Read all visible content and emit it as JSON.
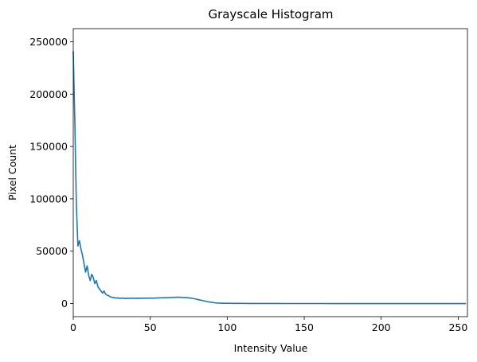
{
  "chart_data": {
    "type": "line",
    "title": "Grayscale Histogram",
    "xlabel": "Intensity Value",
    "ylabel": "Pixel Count",
    "xlim": [
      0,
      256
    ],
    "ylim": [
      -12500,
      262500
    ],
    "xticks": [
      0,
      50,
      100,
      150,
      200,
      250
    ],
    "yticks": [
      0,
      50000,
      100000,
      150000,
      200000,
      250000
    ],
    "grid": false,
    "series": [
      {
        "color": "#1f77b4",
        "x": [
          0,
          1,
          2,
          3,
          4,
          5,
          6,
          7,
          8,
          9,
          10,
          11,
          12,
          13,
          14,
          15,
          16,
          17,
          18,
          19,
          20,
          21,
          22,
          23,
          24,
          25,
          26,
          27,
          28,
          29,
          30,
          32,
          34,
          36,
          38,
          40,
          42,
          44,
          46,
          48,
          50,
          52,
          54,
          56,
          58,
          60,
          62,
          64,
          66,
          68,
          70,
          72,
          74,
          76,
          78,
          80,
          82,
          84,
          86,
          88,
          90,
          92,
          94,
          96,
          98,
          100,
          105,
          110,
          115,
          120,
          125,
          130,
          140,
          150,
          160,
          170,
          180,
          190,
          200,
          210,
          220,
          230,
          240,
          250,
          255
        ],
        "y": [
          241000,
          175000,
          95000,
          55000,
          60000,
          52000,
          46000,
          38000,
          30000,
          36000,
          27000,
          22000,
          28000,
          25000,
          19000,
          22000,
          16000,
          14000,
          12000,
          10000,
          12000,
          9000,
          8000,
          7500,
          6500,
          6000,
          5800,
          5500,
          5200,
          5500,
          5000,
          5200,
          4800,
          5000,
          5200,
          4900,
          5100,
          5000,
          5200,
          5100,
          5300,
          5100,
          5300,
          5400,
          5500,
          5600,
          5700,
          5900,
          6000,
          6100,
          6000,
          5800,
          5600,
          5300,
          4800,
          4200,
          3500,
          2800,
          2200,
          1600,
          1100,
          700,
          500,
          400,
          300,
          250,
          200,
          150,
          100,
          80,
          60,
          50,
          40,
          30,
          25,
          20,
          15,
          10,
          10,
          8,
          5,
          5,
          5,
          5,
          5
        ]
      }
    ]
  }
}
